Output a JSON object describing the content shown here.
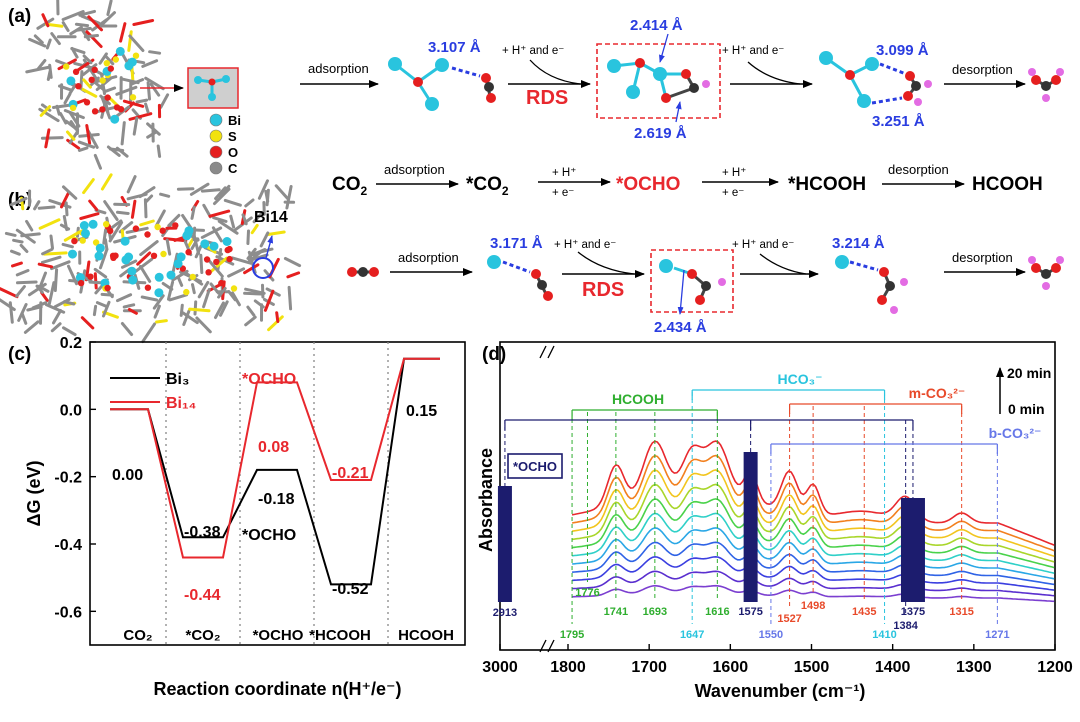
{
  "panel_labels": {
    "a": "(a)",
    "b": "(b)",
    "c": "(c)",
    "d": "(d)"
  },
  "colors": {
    "bi": "#29c4de",
    "s": "#f2e20f",
    "o": "#e51f1f",
    "c": "#8a8a8a",
    "h": "#e36ce3",
    "blue_label": "#2a3de0",
    "red_label": "#e8282e",
    "green_label": "#2fae2f"
  },
  "legend_atoms": [
    {
      "symbol": "Bi",
      "color": "#29c4de"
    },
    {
      "symbol": "S",
      "color": "#f2e20f"
    },
    {
      "symbol": "O",
      "color": "#e51f1f"
    },
    {
      "symbol": "C",
      "color": "#8a8a8a"
    }
  ],
  "cluster_b_label": "Bi14",
  "row_a": {
    "adsorption": "adsorption",
    "step1": "+ H⁺ and e⁻",
    "step2": "+ H⁺ and e⁻",
    "rds": "RDS",
    "desorption": "desorption",
    "d1": "3.107 Å",
    "d2": "2.414 Å",
    "d3": "2.619 Å",
    "d4": "3.099 Å",
    "d5": "3.251 Å"
  },
  "mechanism": {
    "co2": "CO",
    "co2_sub": "2",
    "ads": "adsorption",
    "star_co2": "*CO",
    "star_co2_sub": "2",
    "h1": "+ H⁺",
    "e1": "+ e⁻",
    "ocho": "*OCHO",
    "h2": "+ H⁺",
    "e2": "+ e⁻",
    "hcooh_star": "*HCOOH",
    "des": "desorption",
    "hcooh": "HCOOH"
  },
  "row_b": {
    "adsorption": "adsorption",
    "step1": "+ H⁺ and e⁻",
    "step2": "+ H⁺ and e⁻",
    "rds": "RDS",
    "desorption": "desorption",
    "d1": "3.171 Å",
    "d2": "2.434 Å",
    "d3": "3.214 Å"
  },
  "chart_data": [
    {
      "type": "line",
      "panel": "(c)",
      "ylabel": "ΔG (eV)",
      "xlabel": "Reaction coordinate n(H⁺/e⁻)",
      "ylim": [
        -0.7,
        0.2
      ],
      "yticks": [
        "0.2",
        "0.0",
        "-0.2",
        "-0.4",
        "-0.6"
      ],
      "states": [
        "CO₂",
        "*CO₂",
        "*OCHO",
        "*HCOOH",
        "HCOOH"
      ],
      "series": [
        {
          "name": "Bi₃",
          "color": "#000000",
          "values": [
            0.0,
            -0.38,
            -0.18,
            -0.52,
            0.15
          ]
        },
        {
          "name": "Bi₁₄",
          "color": "#e8282e",
          "values": [
            0.0,
            -0.44,
            0.08,
            -0.21,
            0.15
          ]
        }
      ],
      "value_labels": {
        "bi3": [
          "0.00",
          "-0.38",
          "-0.18",
          "-0.52",
          "0.15"
        ],
        "bi14": [
          "-0.44",
          "0.08",
          "-0.21"
        ]
      },
      "annotations": {
        "ocho_red": "*OCHO",
        "ocho_black": "*OCHO"
      }
    },
    {
      "type": "line",
      "panel": "(d)",
      "xlabel": "Wavenumber (cm⁻¹)",
      "ylabel": "Absorbance",
      "xlim": [
        3000,
        1200
      ],
      "xticks": [
        "3000",
        "1800",
        "1700",
        "1600",
        "1500",
        "1400",
        "1300",
        "1200"
      ],
      "time_labels": {
        "top": "20 min",
        "bottom": "0 min"
      },
      "n_spectra": 11,
      "group_labels": {
        "hcooh": "HCOOH",
        "hco3": "HCO₃⁻",
        "mco3": "m-CO₃²⁻",
        "bco3": "b-CO₃²⁻",
        "ocho": "*OCHO"
      },
      "peaks": [
        {
          "label": "2913",
          "group": "ocho"
        },
        {
          "label": "1795",
          "group": "hcooh"
        },
        {
          "label": "1776",
          "group": "hcooh"
        },
        {
          "label": "1741",
          "group": "hcooh"
        },
        {
          "label": "1693",
          "group": "hcooh"
        },
        {
          "label": "1616",
          "group": "hcooh"
        },
        {
          "label": "1647",
          "group": "hco3"
        },
        {
          "label": "1575",
          "group": "ocho"
        },
        {
          "label": "1550",
          "group": "bco3"
        },
        {
          "label": "1527",
          "group": "mco3"
        },
        {
          "label": "1498",
          "group": "mco3"
        },
        {
          "label": "1435",
          "group": "mco3"
        },
        {
          "label": "1410",
          "group": "hco3"
        },
        {
          "label": "1375",
          "group": "ocho"
        },
        {
          "label": "1384",
          "group": "ocho"
        },
        {
          "label": "1315",
          "group": "mco3"
        },
        {
          "label": "1271",
          "group": "bco3"
        }
      ]
    }
  ]
}
